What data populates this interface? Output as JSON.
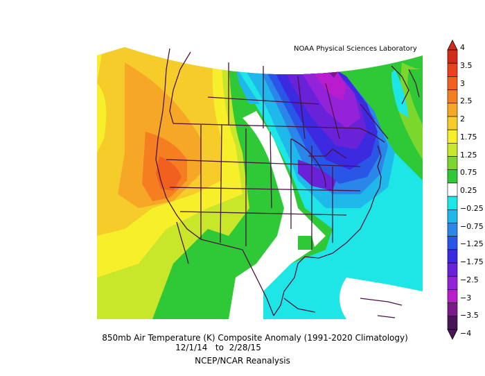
{
  "header": {
    "credit": "NOAA Physical Sciences Laboratory"
  },
  "caption": {
    "line1": "850mb Air Temperature (K) Composite Anomaly (1991-2020 Climatology)",
    "line2_start": "12/1/14",
    "line2_sep": "to",
    "line2_end": "2/28/15",
    "line3": "NCEP/NCAR Reanalysis"
  },
  "colorbar": {
    "labels": [
      "4",
      "3.5",
      "3",
      "2.5",
      "2",
      "1.75",
      "1.25",
      "0.75",
      "0.25",
      "−0.25",
      "−0.75",
      "−1.25",
      "−1.75",
      "−2.5",
      "−3",
      "−3.5",
      "−4"
    ],
    "colors": [
      "#d42a1a",
      "#e9421f",
      "#f2601f",
      "#f57f20",
      "#f6a726",
      "#f5cc2a",
      "#f6ef2a",
      "#c8e62a",
      "#7cd72d",
      "#2fc836",
      "#ffffff",
      "#1fe6e6",
      "#1eb9ea",
      "#2a86e8",
      "#2a56e8",
      "#3b2ae0",
      "#6a22d8",
      "#9422d8",
      "#b81ccc",
      "#7a1a8a",
      "#4a1458"
    ]
  },
  "map": {
    "region": "North America",
    "variable": "850mb Air Temperature anomaly",
    "border_color": "#4a1240"
  }
}
